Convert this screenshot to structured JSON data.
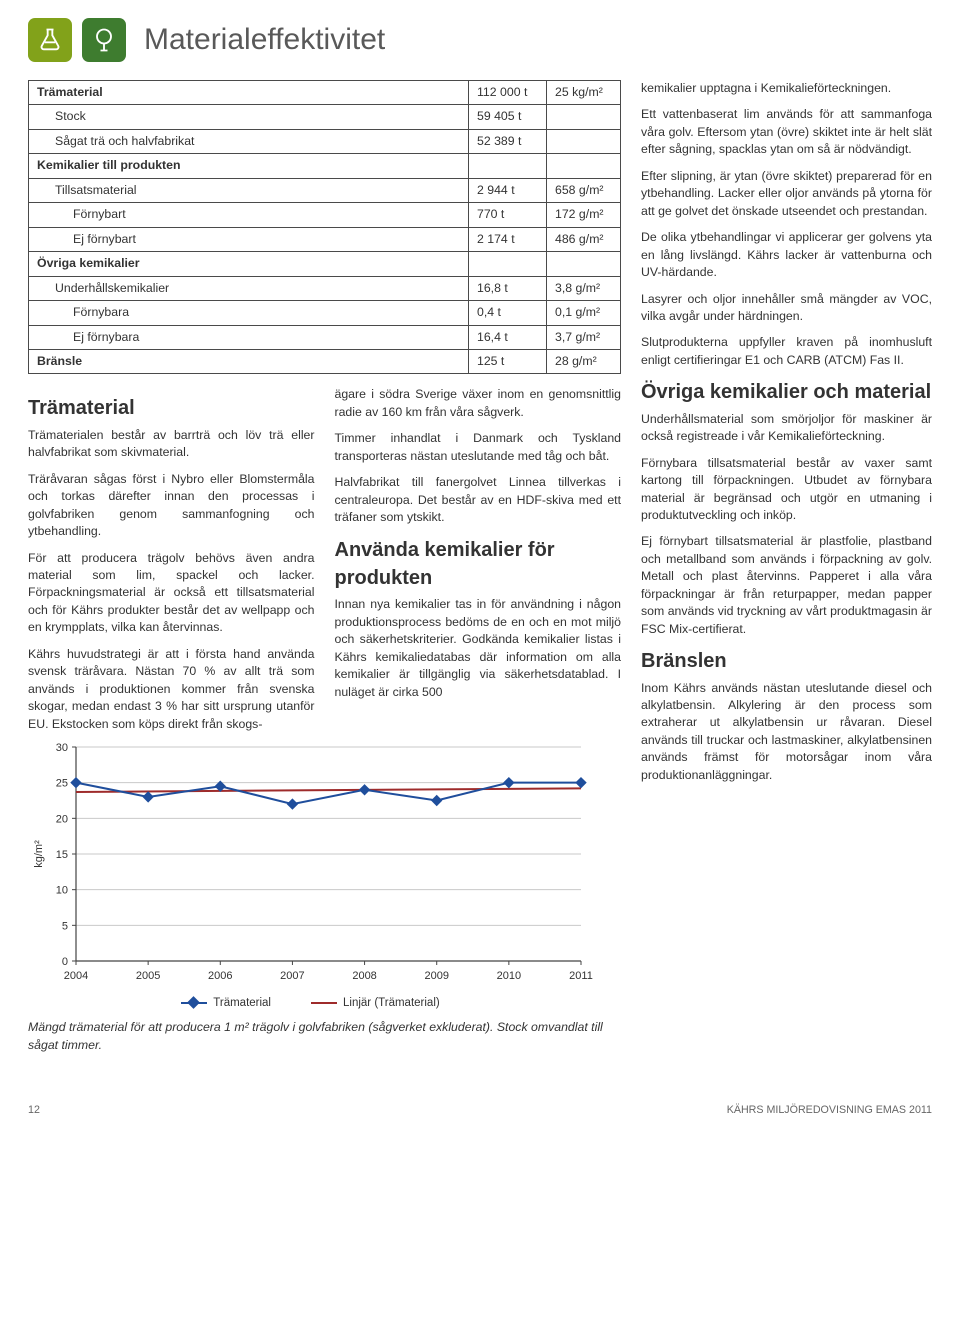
{
  "header": {
    "title": "Materialeffektivitet",
    "icon1": "flask-icon",
    "icon2": "tree-icon"
  },
  "table": {
    "rows": [
      {
        "label": "Trämaterial",
        "v1": "112 000 t",
        "v2": "25 kg/m²",
        "bold": true,
        "indent": 0
      },
      {
        "label": "Stock",
        "v1": "59 405 t",
        "v2": "",
        "indent": 1
      },
      {
        "label": "Sågat trä och halvfabrikat",
        "v1": "52 389 t",
        "v2": "",
        "indent": 1
      },
      {
        "label": "Kemikalier till produkten",
        "v1": "",
        "v2": "",
        "bold": true,
        "indent": 0
      },
      {
        "label": "Tillsatsmaterial",
        "v1": "2 944 t",
        "v2": "658 g/m²",
        "indent": 1
      },
      {
        "label": "Förnybart",
        "v1": "770 t",
        "v2": "172 g/m²",
        "indent": 2
      },
      {
        "label": "Ej förnybart",
        "v1": "2 174 t",
        "v2": "486 g/m²",
        "indent": 2
      },
      {
        "label": "Övriga kemikalier",
        "v1": "",
        "v2": "",
        "bold": true,
        "indent": 0
      },
      {
        "label": "Underhållskemikalier",
        "v1": "16,8 t",
        "v2": "3,8 g/m²",
        "indent": 1
      },
      {
        "label": "Förnybara",
        "v1": "0,4 t",
        "v2": "0,1 g/m²",
        "indent": 2
      },
      {
        "label": "Ej förnybara",
        "v1": "16,4 t",
        "v2": "3,7 g/m²",
        "indent": 2
      },
      {
        "label": "Bränsle",
        "v1": "125 t",
        "v2": "28 g/m²",
        "bold": true,
        "indent": 0
      }
    ]
  },
  "sections": {
    "tramaterial_h": "Trämaterial",
    "tra_p1": "Trämaterialen består av barrträ och löv trä eller halvfabrikat som skivmaterial.",
    "tra_p2": "Träråvaran sågas först i Nybro eller Blomstermåla och torkas därefter innan den processas i golvfabriken genom sammanfogning och ytbehandling.",
    "tra_p3": "För att producera trägolv behövs även andra material som lim, spackel och lacker. Förpackningsmaterial är också ett tillsatsmaterial och för Kährs produkter består det av wellpapp och en krympplats, vilka kan återvinnas.",
    "tra_p4": "Kährs huvudstrategi är att i första hand använda svensk träråvara. Nästan 70 % av allt trä som används i produktionen kommer från svenska skogar, medan endast 3 % har sitt ursprung utanför EU. Ekstocken som köps direkt från skogs-",
    "tra_p4b": "ägare i södra Sverige växer inom en genomsnittlig radie av 160 km från våra sågverk.",
    "tra_p5": "Timmer inhandlat i Danmark och Tyskland transporteras nästan uteslutande med tåg och båt.",
    "tra_p6": "Halvfabrikat till fanergolvet Linnea tillverkas i centraleuropa. Det består av en HDF-skiva med ett träfaner som ytskikt.",
    "anv_h": "Använda kemikalier för produkten",
    "anv_p1": "Innan nya kemikalier tas in för användning i någon produktionsprocess bedöms de en och en mot miljö och säkerhetskriterier. Godkända kemikalier listas i Kährs kemikaliedatabas där information om alla kemikalier är tillgänglig via säkerhetsdatablad. I nuläget är cirka 500",
    "anv_p1b": "kemikalier upptagna i Kemikalieförteckningen.",
    "anv_p2": "Ett vattenbaserat lim används för att sammanfoga våra golv. Eftersom ytan (övre) skiktet inte är helt slät efter sågning, spacklas ytan om så är nödvändigt.",
    "anv_p3": "Efter slipning, är ytan (övre skiktet) preparerad för en ytbehandling. Lacker eller oljor används på ytorna för att ge golvet det önskade utseendet och prestandan.",
    "anv_p4": "De olika ytbehandlingar vi applicerar ger golvens yta en lång livslängd. Kährs lacker är vattenburna och UV-härdande.",
    "anv_p5": "Lasyrer och oljor innehåller små mängder av VOC, vilka avgår under härdningen.",
    "anv_p6": "Slutprodukterna uppfyller kraven på inomhusluft enligt certifieringar E1 och CARB (ATCM) Fas II.",
    "ovr_h": "Övriga kemikalier och material",
    "ovr_p1": "Underhållsmaterial som smörjoljor för maskiner är också registreade i vår Kemikalieförteckning.",
    "ovr_p2": "Förnybara tillsatsmaterial består av vaxer samt kartong till förpackningen. Utbudet av förnybara material är begränsad och utgör en utmaning i produktutveckling och inköp.",
    "ovr_p3": "Ej förnybart tillsatsmaterial är plastfolie, plastband och metallband som används i förpackning av golv. Metall och plast återvinns. Papperet i alla våra förpackningar är från returpapper, medan papper som används vid tryckning av vårt produktmagasin är FSC Mix-certifierat.",
    "bra_h": "Bränslen",
    "bra_p1": "Inom Kährs används nästan uteslutande diesel och alkylatbensin. Alkylering är den process som extraherar ut alkylatbensin ur råvaran. Diesel används till truckar och lastmaskiner, alkylatbensinen används främst för motorsågar inom våra produktionanläggningar."
  },
  "chart": {
    "type": "line",
    "ylabel": "kg/m²",
    "categories": [
      "2004",
      "2005",
      "2006",
      "2007",
      "2008",
      "2009",
      "2010",
      "2011"
    ],
    "series1_name": "Trämaterial",
    "series1_values": [
      25,
      23,
      24.5,
      22,
      24,
      22.5,
      25,
      25
    ],
    "series1_color": "#1f4e9c",
    "series2_name": "Linjär (Trämaterial)",
    "series2_start": 23.7,
    "series2_end": 24.2,
    "series2_color": "#9e2b2b",
    "ylim": [
      0,
      30
    ],
    "ytick_step": 5,
    "grid_color": "#c9c9c9",
    "axis_color": "#444444",
    "label_fontsize": 11
  },
  "caption": "Mängd trämaterial för att producera 1 m² trägolv i golvfabriken (sågverket exkluderat). Stock omvandlat till sågat timmer.",
  "footer": {
    "page": "12",
    "doc": "KÄHRS MILJÖREDOVISNING EMAS 2011"
  },
  "colors": {
    "icon_green1": "#82a21a",
    "icon_green2": "#3e7c2f"
  }
}
